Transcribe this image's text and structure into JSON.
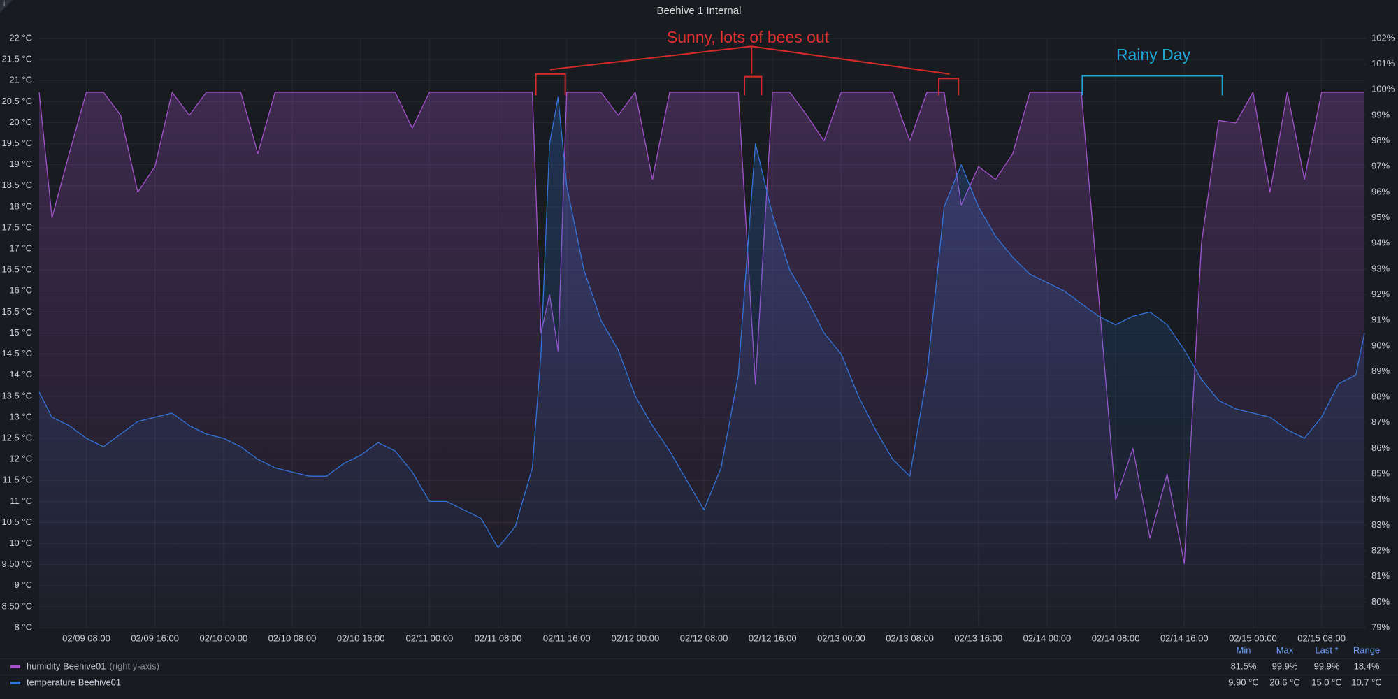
{
  "chart_data": {
    "type": "line",
    "title": "Beehive 1 Internal",
    "annotations": [
      {
        "text": "Sunny, lots of bees out",
        "color": "#e02f2f"
      },
      {
        "text": "Rainy Day",
        "color": "#1fa6d6"
      }
    ],
    "x": [
      "02/09 02:30",
      "02/09 04:00",
      "02/09 06:00",
      "02/09 08:00",
      "02/09 10:00",
      "02/09 12:00",
      "02/09 14:00",
      "02/09 16:00",
      "02/09 18:00",
      "02/09 20:00",
      "02/09 22:00",
      "02/10 00:00",
      "02/10 02:00",
      "02/10 04:00",
      "02/10 06:00",
      "02/10 08:00",
      "02/10 10:00",
      "02/10 12:00",
      "02/10 14:00",
      "02/10 16:00",
      "02/10 18:00",
      "02/10 20:00",
      "02/10 22:00",
      "02/11 00:00",
      "02/11 02:00",
      "02/11 04:00",
      "02/11 06:00",
      "02/11 08:00",
      "02/11 10:00",
      "02/11 12:00",
      "02/11 13:00",
      "02/11 14:00",
      "02/11 15:00",
      "02/11 16:00",
      "02/11 18:00",
      "02/11 20:00",
      "02/11 22:00",
      "02/12 00:00",
      "02/12 02:00",
      "02/12 04:00",
      "02/12 06:00",
      "02/12 08:00",
      "02/12 10:00",
      "02/12 12:00",
      "02/12 14:00",
      "02/12 16:00",
      "02/12 18:00",
      "02/12 20:00",
      "02/12 22:00",
      "02/13 00:00",
      "02/13 02:00",
      "02/13 04:00",
      "02/13 06:00",
      "02/13 08:00",
      "02/13 10:00",
      "02/13 12:00",
      "02/13 14:00",
      "02/13 16:00",
      "02/13 18:00",
      "02/13 20:00",
      "02/13 22:00",
      "02/14 00:00",
      "02/14 02:00",
      "02/14 04:00",
      "02/14 06:00",
      "02/14 08:00",
      "02/14 10:00",
      "02/14 12:00",
      "02/14 14:00",
      "02/14 16:00",
      "02/14 18:00",
      "02/14 20:00",
      "02/14 22:00",
      "02/15 00:00",
      "02/15 02:00",
      "02/15 04:00",
      "02/15 06:00",
      "02/15 08:00",
      "02/15 10:00",
      "02/15 12:00",
      "02/15 13:00"
    ],
    "xlim": [
      "02/09 02:30",
      "02/15 13:00"
    ],
    "xticks": [
      "02/09 08:00",
      "02/09 16:00",
      "02/10 00:00",
      "02/10 08:00",
      "02/10 16:00",
      "02/11 00:00",
      "02/11 08:00",
      "02/11 16:00",
      "02/12 00:00",
      "02/12 08:00",
      "02/12 16:00",
      "02/13 00:00",
      "02/13 08:00",
      "02/13 16:00",
      "02/14 00:00",
      "02/14 08:00",
      "02/14 16:00",
      "02/15 00:00",
      "02/15 08:00"
    ],
    "ylim": [
      8,
      22
    ],
    "yticks": [
      {
        "value": 8,
        "label": "8 °C"
      },
      {
        "value": 8.5,
        "label": "8.50 °C"
      },
      {
        "value": 9,
        "label": "9 °C"
      },
      {
        "value": 9.5,
        "label": "9.50 °C"
      },
      {
        "value": 10,
        "label": "10 °C"
      },
      {
        "value": 10.5,
        "label": "10.5 °C"
      },
      {
        "value": 11,
        "label": "11 °C"
      },
      {
        "value": 11.5,
        "label": "11.5 °C"
      },
      {
        "value": 12,
        "label": "12 °C"
      },
      {
        "value": 12.5,
        "label": "12.5 °C"
      },
      {
        "value": 13,
        "label": "13 °C"
      },
      {
        "value": 13.5,
        "label": "13.5 °C"
      },
      {
        "value": 14,
        "label": "14 °C"
      },
      {
        "value": 14.5,
        "label": "14.5 °C"
      },
      {
        "value": 15,
        "label": "15 °C"
      },
      {
        "value": 15.5,
        "label": "15.5 °C"
      },
      {
        "value": 16,
        "label": "16 °C"
      },
      {
        "value": 16.5,
        "label": "16.5 °C"
      },
      {
        "value": 17,
        "label": "17 °C"
      },
      {
        "value": 17.5,
        "label": "17.5 °C"
      },
      {
        "value": 18,
        "label": "18 °C"
      },
      {
        "value": 18.5,
        "label": "18.5 °C"
      },
      {
        "value": 19,
        "label": "19 °C"
      },
      {
        "value": 19.5,
        "label": "19.5 °C"
      },
      {
        "value": 20,
        "label": "20 °C"
      },
      {
        "value": 20.5,
        "label": "20.5 °C"
      },
      {
        "value": 21,
        "label": "21 °C"
      },
      {
        "value": 21.5,
        "label": "21.5 °C"
      },
      {
        "value": 22,
        "label": "22 °C"
      }
    ],
    "y2lim": [
      79,
      102
    ],
    "y2ticks": [
      {
        "value": 79,
        "label": "79%"
      },
      {
        "value": 80,
        "label": "80%"
      },
      {
        "value": 81,
        "label": "81%"
      },
      {
        "value": 82,
        "label": "82%"
      },
      {
        "value": 83,
        "label": "83%"
      },
      {
        "value": 84,
        "label": "84%"
      },
      {
        "value": 85,
        "label": "85%"
      },
      {
        "value": 86,
        "label": "86%"
      },
      {
        "value": 87,
        "label": "87%"
      },
      {
        "value": 88,
        "label": "88%"
      },
      {
        "value": 89,
        "label": "89%"
      },
      {
        "value": 90,
        "label": "90%"
      },
      {
        "value": 91,
        "label": "91%"
      },
      {
        "value": 92,
        "label": "92%"
      },
      {
        "value": 93,
        "label": "93%"
      },
      {
        "value": 94,
        "label": "94%"
      },
      {
        "value": 95,
        "label": "95%"
      },
      {
        "value": 96,
        "label": "96%"
      },
      {
        "value": 97,
        "label": "97%"
      },
      {
        "value": 98,
        "label": "98%"
      },
      {
        "value": 99,
        "label": "99%"
      },
      {
        "value": 100,
        "label": "100%"
      },
      {
        "value": 101,
        "label": "101%"
      },
      {
        "value": 102,
        "label": "102%"
      }
    ],
    "grid": true,
    "legend_columns": [
      "Min",
      "Max",
      "Last *",
      "Range"
    ],
    "series": [
      {
        "name": "humidity Beehive01",
        "axis_note": "(right y-axis)",
        "color": "#a352cc",
        "axis": "y2",
        "stats": [
          "81.5%",
          "99.9%",
          "99.9%",
          "18.4%"
        ],
        "values": [
          99.9,
          95.0,
          97.5,
          99.9,
          99.9,
          99.0,
          96.0,
          97.0,
          99.9,
          99.0,
          99.9,
          99.9,
          99.9,
          97.5,
          99.9,
          99.9,
          99.9,
          99.9,
          99.9,
          99.9,
          99.9,
          99.9,
          98.5,
          99.9,
          99.9,
          99.9,
          99.9,
          99.9,
          99.9,
          99.9,
          90.5,
          92.0,
          89.8,
          99.9,
          99.9,
          99.9,
          99.0,
          99.9,
          96.5,
          99.9,
          99.9,
          99.9,
          99.9,
          99.9,
          88.5,
          99.9,
          99.9,
          99.0,
          98.0,
          99.9,
          99.9,
          99.9,
          99.9,
          98.0,
          99.9,
          99.9,
          95.5,
          97.0,
          96.5,
          97.5,
          99.9,
          99.9,
          99.9,
          99.9,
          92.0,
          84.0,
          86.0,
          82.5,
          85.0,
          81.5,
          94.0,
          98.8,
          98.7,
          99.9,
          96.0,
          99.9,
          96.5,
          99.9,
          99.9,
          99.9,
          99.9
        ]
      },
      {
        "name": "temperature Beehive01",
        "color": "#3274d9",
        "stats": [
          "9.90 °C",
          "20.6 °C",
          "15.0 °C",
          "10.7 °C"
        ],
        "values": [
          13.6,
          13.0,
          12.8,
          12.5,
          12.3,
          12.6,
          12.9,
          13.0,
          13.1,
          12.8,
          12.6,
          12.5,
          12.3,
          12.0,
          11.8,
          11.7,
          11.6,
          11.6,
          11.9,
          12.1,
          12.4,
          12.2,
          11.7,
          11.0,
          11.0,
          10.8,
          10.6,
          9.9,
          10.4,
          11.8,
          14.5,
          19.5,
          20.6,
          18.5,
          16.5,
          15.3,
          14.6,
          13.5,
          12.8,
          12.2,
          11.5,
          10.8,
          11.8,
          14.0,
          19.5,
          17.8,
          16.5,
          15.8,
          15.0,
          14.5,
          13.5,
          12.7,
          12.0,
          11.6,
          14.0,
          18.0,
          19.0,
          18.0,
          17.3,
          16.8,
          16.4,
          16.2,
          16.0,
          15.7,
          15.4,
          15.2,
          15.4,
          15.5,
          15.2,
          14.6,
          13.9,
          13.4,
          13.2,
          13.1,
          13.0,
          12.7,
          12.5,
          13.0,
          13.8,
          14.0,
          15.0
        ]
      }
    ]
  }
}
